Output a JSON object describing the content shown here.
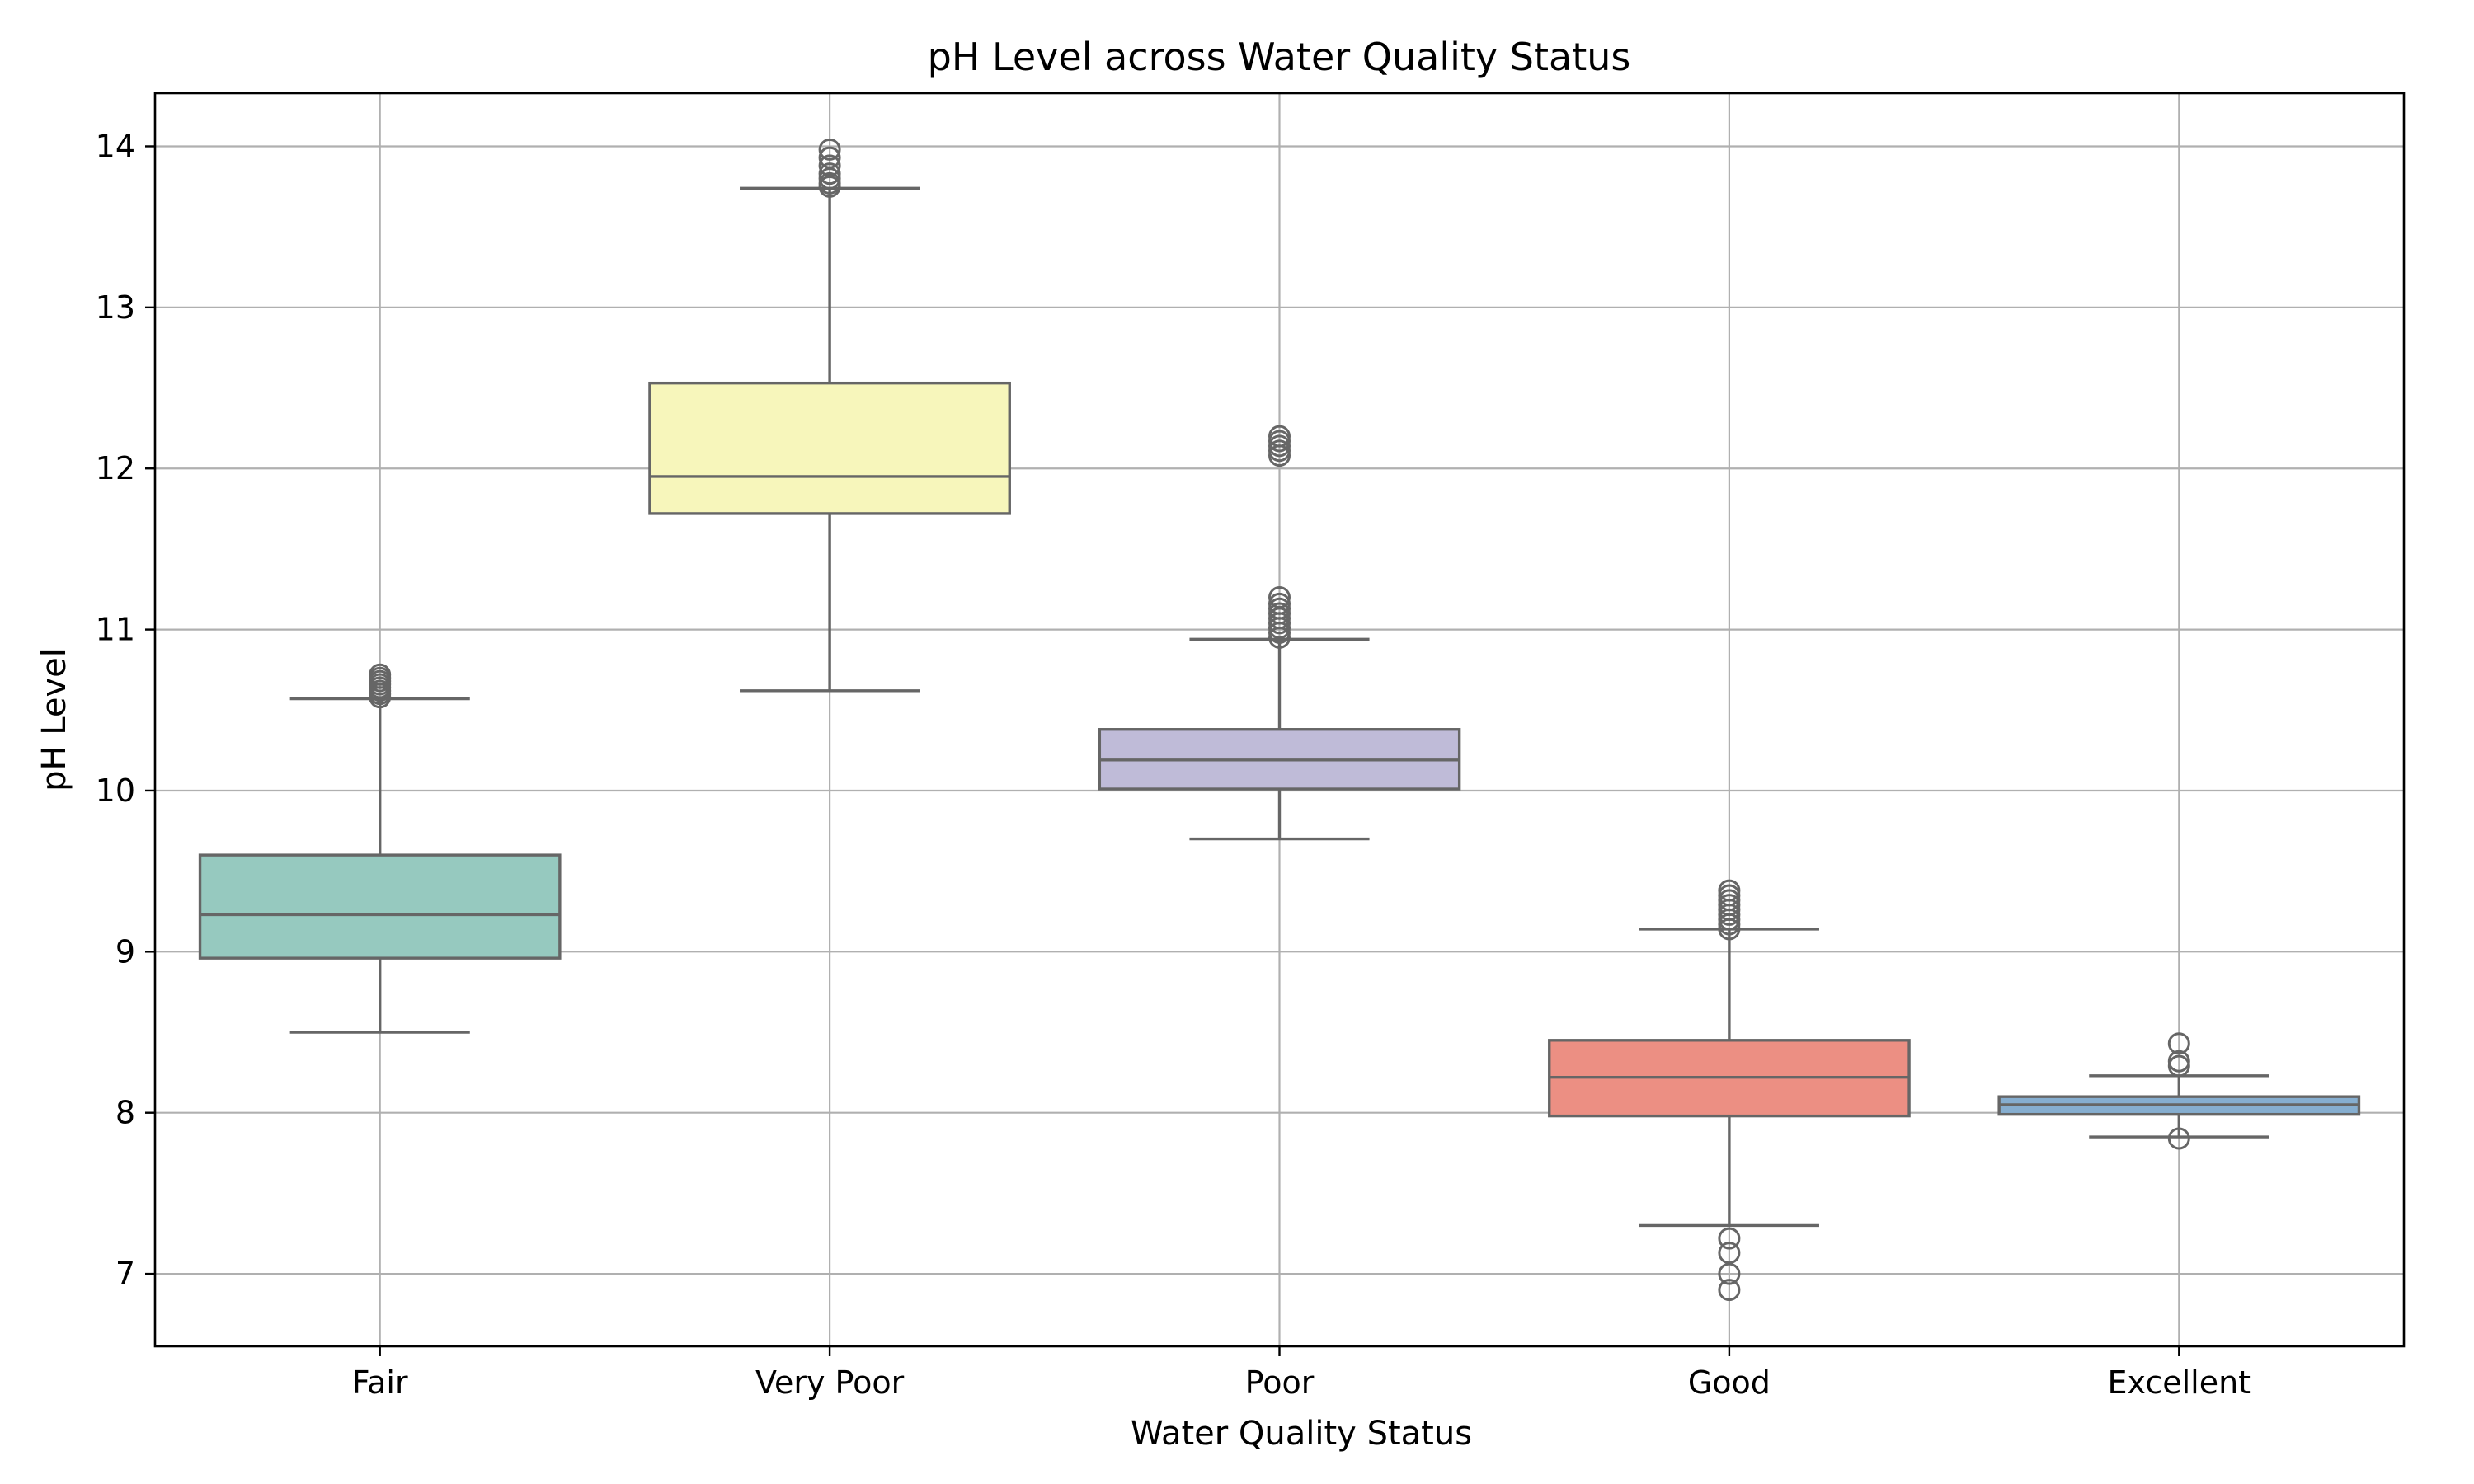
{
  "chart_data": {
    "type": "box",
    "title": "pH Level across Water Quality Status",
    "xlabel": "Water Quality Status",
    "ylabel": "pH Level",
    "ylim": [
      6.55,
      14.33
    ],
    "yticks": [
      7,
      8,
      9,
      10,
      11,
      12,
      13,
      14
    ],
    "grid": true,
    "categories": [
      "Fair",
      "Very Poor",
      "Poor",
      "Good",
      "Excellent"
    ],
    "boxes": [
      {
        "category": "Fair",
        "color": "#96c9bf",
        "whisker_low": 8.5,
        "q1": 8.96,
        "median": 9.23,
        "q3": 9.6,
        "whisker_high": 10.57,
        "outliers": [
          10.58,
          10.6,
          10.62,
          10.64,
          10.66,
          10.68,
          10.7,
          10.72
        ]
      },
      {
        "category": "Very Poor",
        "color": "#f7f6bb",
        "whisker_low": 10.62,
        "q1": 11.72,
        "median": 11.95,
        "q3": 12.53,
        "whisker_high": 13.74,
        "outliers": [
          13.75,
          13.77,
          13.8,
          13.83,
          13.88,
          13.93,
          13.98
        ]
      },
      {
        "category": "Poor",
        "color": "#bfbbd8",
        "whisker_low": 9.7,
        "q1": 10.01,
        "median": 10.19,
        "q3": 10.38,
        "whisker_high": 10.94,
        "outliers": [
          10.95,
          10.98,
          11.01,
          11.04,
          11.07,
          11.1,
          11.13,
          11.16,
          11.2,
          12.08,
          12.11,
          12.14,
          12.17,
          12.2
        ]
      },
      {
        "category": "Good",
        "color": "#ec8f83",
        "whisker_low": 7.3,
        "q1": 7.98,
        "median": 8.22,
        "q3": 8.45,
        "whisker_high": 9.14,
        "outliers": [
          6.9,
          7.0,
          7.13,
          7.22,
          9.14,
          9.17,
          9.2,
          9.23,
          9.26,
          9.29,
          9.32,
          9.35,
          9.38
        ]
      },
      {
        "category": "Excellent",
        "color": "#86aed0",
        "whisker_low": 7.85,
        "q1": 7.99,
        "median": 8.05,
        "q3": 8.1,
        "whisker_high": 8.23,
        "outliers": [
          7.84,
          8.29,
          8.32,
          8.43
        ]
      }
    ]
  }
}
